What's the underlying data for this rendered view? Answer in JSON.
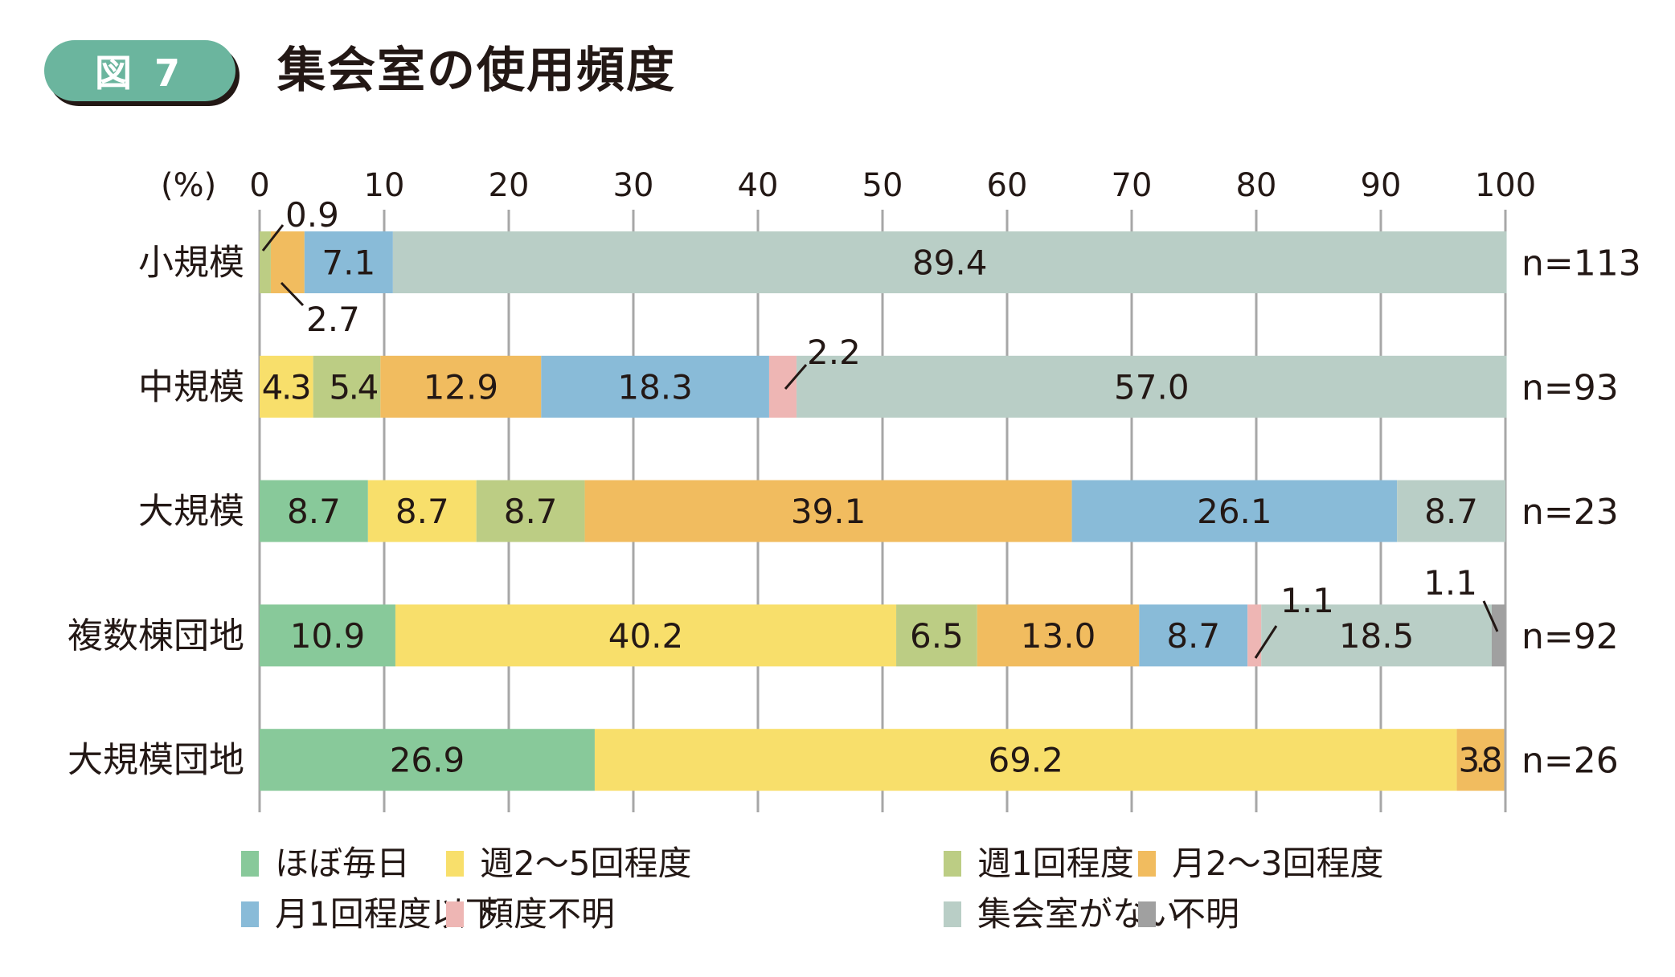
{
  "header": {
    "badge": "図 7",
    "title": "集会室の使用頻度"
  },
  "colors": {
    "ほぼ毎日": "#88c99a",
    "週2～5回程度": "#f8df6b",
    "週1回程度": "#bccd84",
    "月2～3回程度": "#f1bc5f",
    "月1回程度以下": "#89bbd8",
    "頻度不明": "#eeb6b4",
    "集会室がない": "#b9cec6",
    "不明": "#a0a0a0",
    "badge": "#6bb59e",
    "grid": "#a7a7a7"
  },
  "chart_data": {
    "type": "bar",
    "orientation": "horizontal",
    "stacked": true,
    "title": "集会室の使用頻度",
    "unit_label": "(%)",
    "xlim": [
      0,
      100
    ],
    "xticks": [
      "0",
      "10",
      "20",
      "30",
      "40",
      "50",
      "60",
      "70",
      "80",
      "90",
      "100"
    ],
    "grid": true,
    "legend_position": "bottom",
    "categories": [
      "小規模",
      "中規模",
      "大規模",
      "複数棟団地",
      "大規模団地"
    ],
    "n_labels": [
      "n=113",
      "n=93",
      "n=23",
      "n=92",
      "n=26"
    ],
    "series": [
      {
        "name": "ほぼ毎日",
        "values": [
          0,
          0,
          8.7,
          10.9,
          26.9
        ]
      },
      {
        "name": "週2～5回程度",
        "values": [
          0,
          4.3,
          8.7,
          40.2,
          69.2
        ]
      },
      {
        "name": "週1回程度",
        "values": [
          0.9,
          5.4,
          8.7,
          6.5,
          0
        ]
      },
      {
        "name": "月2～3回程度",
        "values": [
          2.7,
          12.9,
          39.1,
          13.0,
          3.8
        ]
      },
      {
        "name": "月1回程度以下",
        "values": [
          7.1,
          18.3,
          26.1,
          8.7,
          0
        ]
      },
      {
        "name": "頻度不明",
        "values": [
          0,
          2.2,
          0,
          1.1,
          0
        ]
      },
      {
        "name": "集会室がない",
        "values": [
          89.4,
          57.0,
          8.7,
          18.5,
          0
        ]
      },
      {
        "name": "不明",
        "values": [
          0,
          0,
          0,
          1.1,
          0
        ]
      }
    ],
    "labels": [
      [
        null,
        null,
        "0.9",
        "2.7",
        "7.1",
        null,
        "89.4",
        null
      ],
      [
        null,
        "4.3",
        "5.4",
        "12.9",
        "18.3",
        "2.2",
        "57.0",
        null
      ],
      [
        "8.7",
        "8.7",
        "8.7",
        "39.1",
        "26.1",
        null,
        "8.7",
        null
      ],
      [
        "10.9",
        "40.2",
        "6.5",
        "13.0",
        "8.7",
        "1.1",
        "18.5",
        "1.1"
      ],
      [
        "26.9",
        "69.2",
        null,
        "3.8",
        null,
        null,
        null,
        null
      ]
    ],
    "legend": [
      "ほぼ毎日",
      "週2～5回程度",
      "週1回程度",
      "月2～3回程度",
      "月1回程度以下",
      "頻度不明",
      "集会室がない",
      "不明"
    ]
  }
}
